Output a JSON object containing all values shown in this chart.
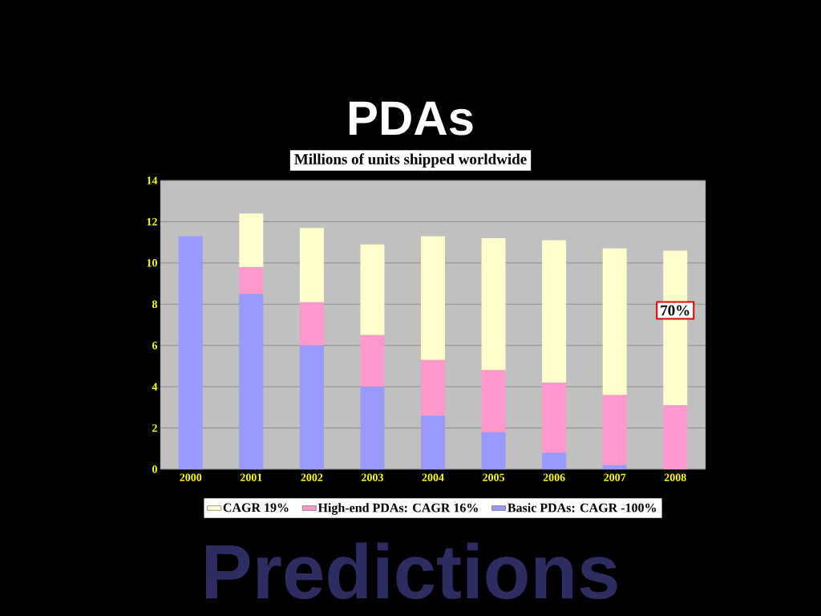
{
  "chart_data": {
    "type": "bar",
    "title": "PDAs",
    "subtitle": "Millions of units shipped worldwide",
    "categories": [
      "2000",
      "2001",
      "2002",
      "2003",
      "2004",
      "2005",
      "2006",
      "2007",
      "2008"
    ],
    "stacked": true,
    "series": [
      {
        "name": "Basic PDAs: CAGR -100%",
        "color": "#9999ff",
        "values": [
          11.3,
          8.5,
          6.0,
          4.0,
          2.6,
          1.8,
          0.8,
          0.2,
          0
        ]
      },
      {
        "name": "High-end PDAs: CAGR 16%",
        "color": "#ff99cc",
        "values": [
          0,
          1.3,
          2.1,
          2.5,
          2.7,
          3.0,
          3.4,
          3.4,
          3.1
        ]
      },
      {
        "name": "CAGR 19%",
        "color": "#ffffcc",
        "values": [
          0,
          2.6,
          3.6,
          4.4,
          6.0,
          6.4,
          6.9,
          7.1,
          7.5
        ]
      }
    ],
    "ylim": [
      0,
      14
    ],
    "yticks": [
      0,
      2,
      4,
      6,
      8,
      10,
      12,
      14
    ],
    "grid": "y",
    "legend": "bottom",
    "annotations": [
      "Predictions",
      "70%"
    ]
  }
}
